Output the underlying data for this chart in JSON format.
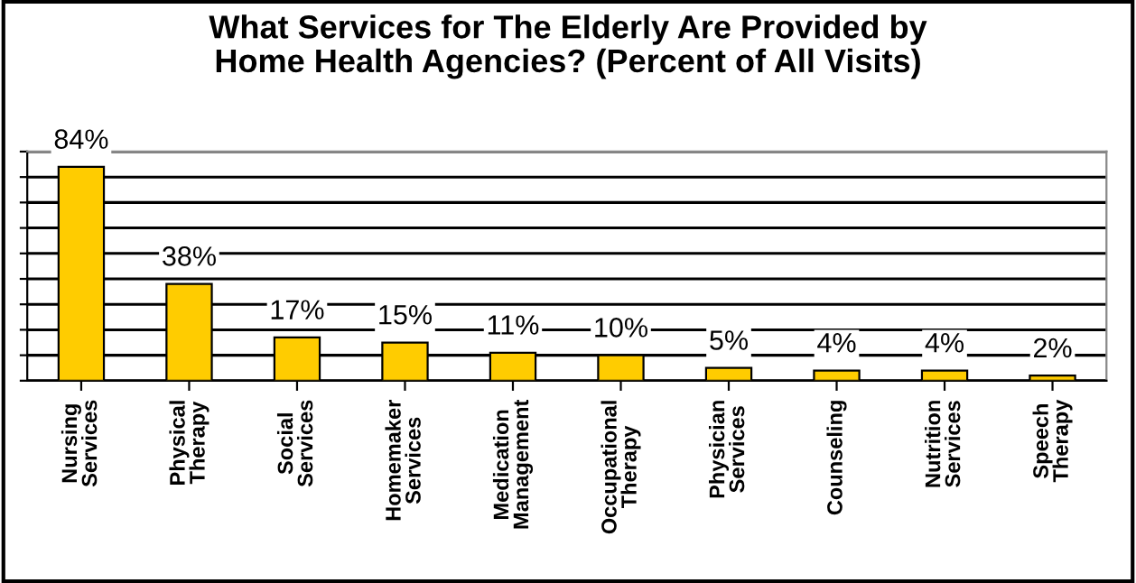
{
  "chart_data": {
    "type": "bar",
    "title": "What Services for The Elderly Are Provided by\nHome Health Agencies? (Percent of All Visits)",
    "categories": [
      "Nursing Services",
      "Physical Therapy",
      "Social Services",
      "Homemaker Services",
      "Medication Management",
      "Occupational Therapy",
      "Physician Services",
      "Counseling",
      "Nutrition Services",
      "Speech Therapy"
    ],
    "values": [
      84,
      38,
      17,
      15,
      11,
      10,
      5,
      4,
      4,
      2
    ],
    "value_labels": [
      "84%",
      "38%",
      "17%",
      "15%",
      "11%",
      "10%",
      "5%",
      "4%",
      "4%",
      "2%"
    ],
    "color": "#ffcc00",
    "ylim": [
      0,
      90
    ],
    "yticks": [
      {
        "value": 0,
        "label": null
      },
      {
        "value": 10,
        "label": null
      },
      {
        "value": 20,
        "label": null
      },
      {
        "value": 30,
        "label": null
      },
      {
        "value": 40,
        "label": null
      },
      {
        "value": 50,
        "label": null
      },
      {
        "value": 60,
        "label": null
      },
      {
        "value": 70,
        "label": null
      },
      {
        "value": 80,
        "label": null
      },
      {
        "value": 90,
        "label": null
      }
    ],
    "tick_labels": "x",
    "grid": "y"
  }
}
